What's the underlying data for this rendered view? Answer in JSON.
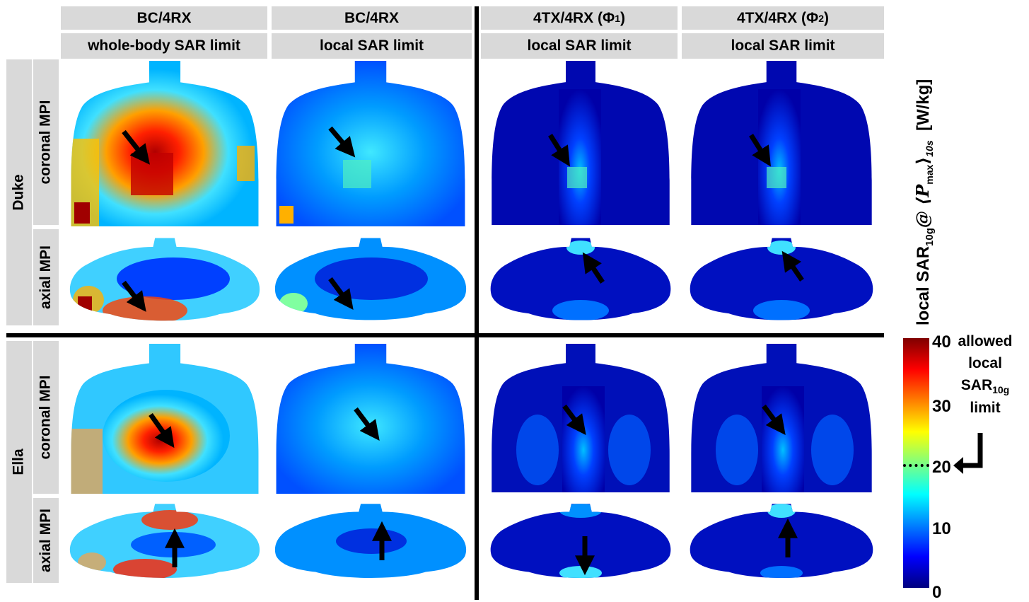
{
  "columns": [
    {
      "top": "BC/4RX",
      "bottom": "whole-body SAR limit"
    },
    {
      "top": "BC/4RX",
      "bottom": "local SAR limit"
    },
    {
      "top": "4TX/4RX (Φ",
      "top_sub": "1",
      "top_end": ")",
      "bottom": "local SAR limit"
    },
    {
      "top": "4TX/4RX (Φ",
      "top_sub": "2",
      "top_end": ")",
      "bottom": "local SAR limit"
    }
  ],
  "subjects": [
    "Duke",
    "Ella"
  ],
  "views": [
    "coronal MPI",
    "axial MPI"
  ],
  "colorbar": {
    "label_main": "local SAR",
    "label_sub": "10g",
    "label_at": "@ ⟨P",
    "label_psub": "max",
    "label_end": "⟩",
    "label_tsub": "10s",
    "label_unit": "[W/kg]",
    "ticks": [
      "40",
      "30",
      "20",
      "10",
      "0"
    ],
    "min": 0,
    "max": 40,
    "colors": [
      "#00007f",
      "#0000ff",
      "#007fff",
      "#00ffff",
      "#7fff7f",
      "#ffff00",
      "#ff7f00",
      "#ff0000",
      "#7f0000"
    ]
  },
  "annotation": {
    "line1": "allowed",
    "line2": "local",
    "line3_main": "SAR",
    "line3_sub": "10g",
    "line4": "limit",
    "limit_value": 20
  }
}
